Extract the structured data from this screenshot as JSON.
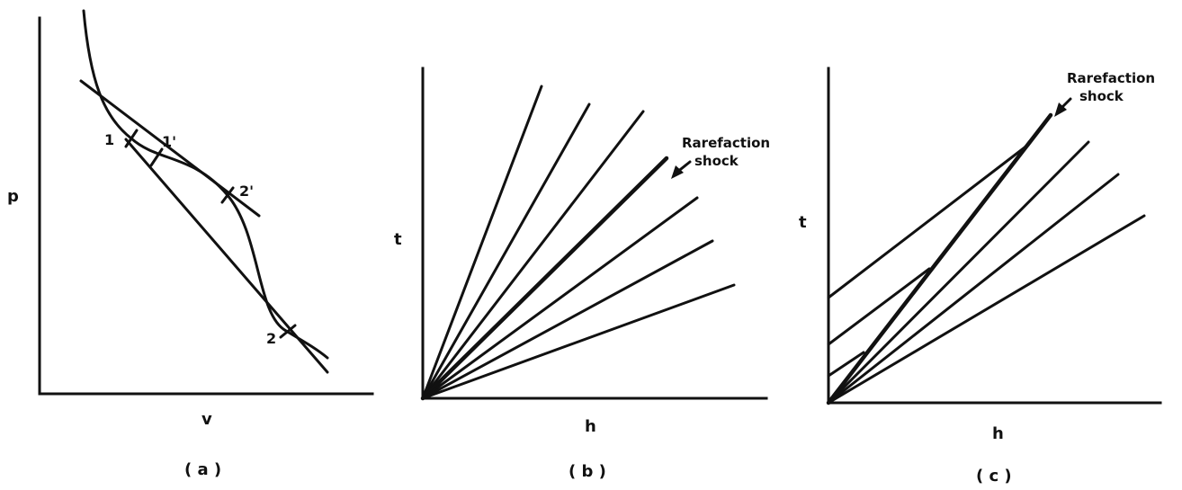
{
  "panel_a": {
    "y_label": "p",
    "x_label": "v",
    "caption": "( a )",
    "point_labels": [
      "1",
      "1'",
      "2'",
      "2"
    ]
  },
  "panel_b": {
    "y_label": "t",
    "x_label": "h",
    "caption": "( b )",
    "annotation_line1": "Rarefaction",
    "annotation_line2": "shock"
  },
  "panel_c": {
    "y_label": "t",
    "x_label": "h",
    "caption": "( c )",
    "annotation_line1": "Rarefaction",
    "annotation_line2": "shock"
  }
}
